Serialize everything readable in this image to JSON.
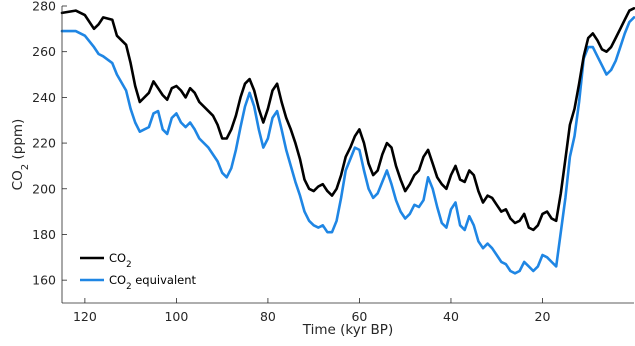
{
  "chart_data": {
    "type": "line",
    "xlabel": "Time (kyr BP)",
    "ylabel_main": "CO",
    "ylabel_sub": "2",
    "ylabel_tail": " (ppm)",
    "xlim": [
      125,
      0
    ],
    "ylim": [
      150,
      280
    ],
    "xticks": [
      120,
      100,
      80,
      60,
      40,
      20
    ],
    "yticks": [
      160,
      180,
      200,
      220,
      240,
      260,
      280
    ],
    "grid": false,
    "legend_position": "bottom-left",
    "series": [
      {
        "name_main": "CO",
        "name_sub": "2",
        "name_tail": "",
        "color": "#000000",
        "x": [
          125,
          122,
          120,
          118,
          117,
          116,
          114,
          113,
          111,
          110,
          109,
          108,
          106,
          105,
          104,
          103,
          102,
          101,
          100,
          99,
          98,
          97,
          96,
          95,
          93,
          92,
          91,
          90,
          89,
          88,
          87,
          86,
          85,
          84,
          83,
          82,
          81,
          80,
          79,
          78,
          77,
          76,
          75,
          74,
          73,
          72,
          71,
          70,
          69,
          68,
          67,
          66,
          65,
          64,
          63,
          62,
          61,
          60,
          59,
          58,
          57,
          56,
          55,
          54,
          53,
          52,
          51,
          50,
          49,
          48,
          47,
          46,
          45,
          44,
          43,
          42,
          41,
          40,
          39,
          38,
          37,
          36,
          35,
          34,
          33,
          32,
          31,
          30,
          29,
          28,
          27,
          26,
          25,
          24,
          23,
          22,
          21,
          20,
          19,
          18,
          17,
          16,
          15,
          14,
          13,
          12,
          11,
          10,
          9,
          8,
          7,
          6,
          5,
          4,
          3,
          2,
          1,
          0
        ],
        "y": [
          277,
          278,
          276,
          270,
          272,
          275,
          274,
          267,
          263,
          255,
          245,
          238,
          242,
          247,
          244,
          241,
          239,
          244,
          245,
          243,
          240,
          244,
          242,
          238,
          234,
          232,
          228,
          222,
          222,
          226,
          232,
          240,
          246,
          248,
          243,
          235,
          229,
          235,
          243,
          246,
          238,
          231,
          226,
          220,
          213,
          204,
          200,
          199,
          201,
          202,
          199,
          197,
          200,
          206,
          214,
          218,
          223,
          226,
          220,
          211,
          206,
          208,
          215,
          220,
          218,
          210,
          204,
          199,
          202,
          206,
          208,
          214,
          217,
          211,
          205,
          202,
          200,
          206,
          210,
          204,
          203,
          208,
          206,
          199,
          194,
          197,
          196,
          193,
          190,
          191,
          187,
          185,
          186,
          189,
          183,
          182,
          184,
          189,
          190,
          187,
          186,
          198,
          213,
          228,
          235,
          246,
          258,
          266,
          268,
          265,
          261,
          260,
          262,
          266,
          270,
          274,
          278,
          279
        ]
      },
      {
        "name_main": "CO",
        "name_sub": "2",
        "name_tail": " equivalent",
        "color": "#1f86e4",
        "x": [
          125,
          122,
          120,
          118,
          117,
          116,
          114,
          113,
          111,
          110,
          109,
          108,
          106,
          105,
          104,
          103,
          102,
          101,
          100,
          99,
          98,
          97,
          96,
          95,
          93,
          92,
          91,
          90,
          89,
          88,
          87,
          86,
          85,
          84,
          83,
          82,
          81,
          80,
          79,
          78,
          77,
          76,
          75,
          74,
          73,
          72,
          71,
          70,
          69,
          68,
          67,
          66,
          65,
          64,
          63,
          62,
          61,
          60,
          59,
          58,
          57,
          56,
          55,
          54,
          53,
          52,
          51,
          50,
          49,
          48,
          47,
          46,
          45,
          44,
          43,
          42,
          41,
          40,
          39,
          38,
          37,
          36,
          35,
          34,
          33,
          32,
          31,
          30,
          29,
          28,
          27,
          26,
          25,
          24,
          23,
          22,
          21,
          20,
          19,
          18,
          17,
          16,
          15,
          14,
          13,
          12,
          11,
          10,
          9,
          8,
          7,
          6,
          5,
          4,
          3,
          2,
          1,
          0
        ],
        "y": [
          269,
          269,
          267,
          262,
          259,
          258,
          255,
          250,
          243,
          235,
          229,
          225,
          227,
          233,
          234,
          226,
          224,
          231,
          233,
          229,
          227,
          229,
          226,
          222,
          218,
          215,
          212,
          207,
          205,
          209,
          217,
          227,
          236,
          242,
          236,
          226,
          218,
          222,
          231,
          234,
          226,
          217,
          210,
          203,
          197,
          190,
          186,
          184,
          183,
          184,
          181,
          181,
          186,
          196,
          208,
          213,
          218,
          217,
          208,
          200,
          196,
          198,
          203,
          208,
          202,
          195,
          190,
          187,
          189,
          193,
          192,
          195,
          205,
          200,
          192,
          185,
          183,
          191,
          194,
          184,
          182,
          188,
          184,
          177,
          174,
          176,
          174,
          171,
          168,
          167,
          164,
          163,
          164,
          168,
          166,
          164,
          166,
          171,
          170,
          168,
          166,
          181,
          196,
          214,
          223,
          238,
          257,
          262,
          262,
          258,
          254,
          250,
          252,
          256,
          262,
          268,
          273,
          275
        ]
      }
    ]
  }
}
